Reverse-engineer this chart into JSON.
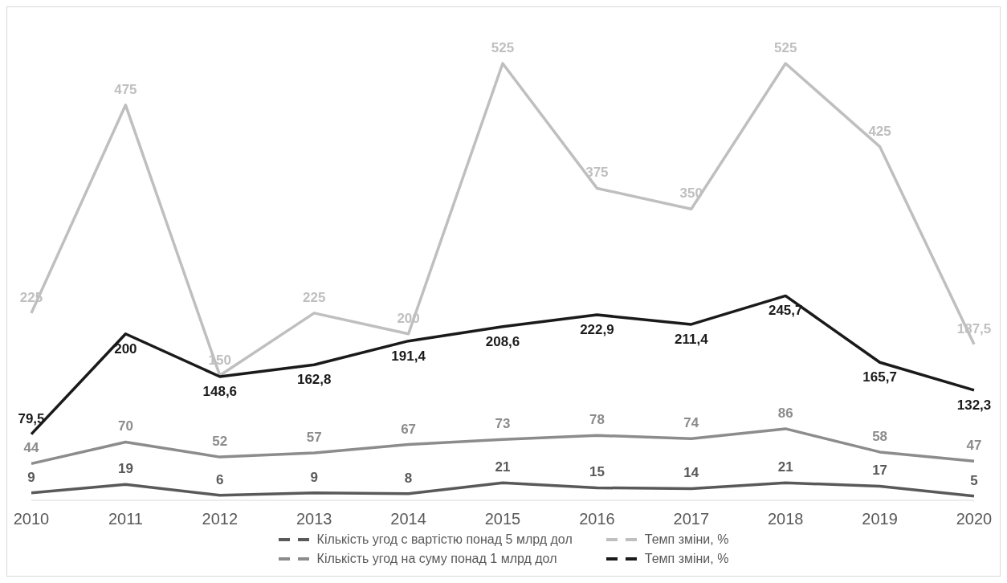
{
  "chart_data": {
    "type": "line",
    "categories": [
      "2010",
      "2011",
      "2012",
      "2013",
      "2014",
      "2015",
      "2016",
      "2017",
      "2018",
      "2019",
      "2020"
    ],
    "series": [
      {
        "name": "Кількість угод с вартістю понад 5 млрд дол",
        "color": "#595959",
        "values": [
          9,
          19,
          6,
          9,
          8,
          21,
          15,
          14,
          21,
          17,
          5
        ],
        "value_labels": [
          "9",
          "19",
          "6",
          "9",
          "8",
          "21",
          "15",
          "14",
          "21",
          "17",
          "5"
        ]
      },
      {
        "name": "Кількість угод на суму понад 1 млрд дол",
        "color": "#8c8c8c",
        "values": [
          44,
          70,
          52,
          57,
          67,
          73,
          78,
          74,
          86,
          58,
          47
        ],
        "value_labels": [
          "44",
          "70",
          "52",
          "57",
          "67",
          "73",
          "78",
          "74",
          "86",
          "58",
          "47"
        ]
      },
      {
        "name": "Темп зміни, %",
        "color": "#bfbfbf",
        "values": [
          225,
          475,
          150,
          225,
          200,
          525,
          375,
          350,
          525,
          425,
          187.5
        ],
        "value_labels": [
          "225",
          "475",
          "150",
          "225",
          "200",
          "525",
          "375",
          "350",
          "525",
          "425",
          "187,5"
        ]
      },
      {
        "name": "Темп зміни, %",
        "color": "#1a1a1a",
        "values": [
          79.5,
          200,
          148.6,
          162.8,
          191.4,
          208.6,
          222.9,
          211.4,
          245.7,
          165.7,
          132.3
        ],
        "value_labels": [
          "79,5",
          "200",
          "148,6",
          "162,8",
          "191,4",
          "208,6",
          "222,9",
          "211,4",
          "245,7",
          "165,7",
          "132,3"
        ]
      }
    ],
    "legend": "bottom",
    "grid": false,
    "marker": "none",
    "line_style": "solid"
  }
}
